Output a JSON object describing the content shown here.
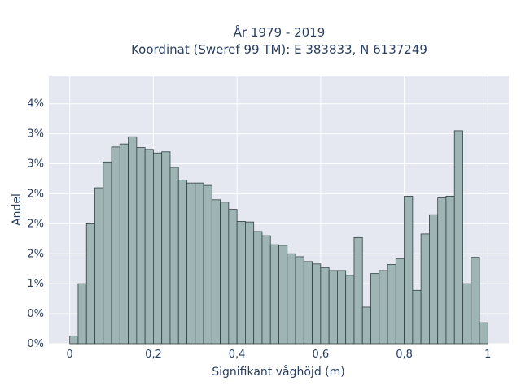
{
  "chart_data": {
    "type": "bar",
    "title_line1": "År 1979 - 2019",
    "title_line2": "Koordinat (Sweref 99 TM): E 383833, N 6137249",
    "xlabel": "Signifikant våghöjd (m)",
    "ylabel": "Andel",
    "xlim": [
      -0.05,
      1.05
    ],
    "ylim": [
      0,
      0.0447
    ],
    "x_ticks": [
      {
        "value": 0,
        "label": "0"
      },
      {
        "value": 0.2,
        "label": "0,2"
      },
      {
        "value": 0.4,
        "label": "0,4"
      },
      {
        "value": 0.6,
        "label": "0,6"
      },
      {
        "value": 0.8,
        "label": "0,8"
      },
      {
        "value": 1.0,
        "label": "1"
      }
    ],
    "y_ticks": [
      {
        "value": 0,
        "label": "0%"
      },
      {
        "value": 0.005,
        "label": "0%"
      },
      {
        "value": 0.01,
        "label": "1%"
      },
      {
        "value": 0.015,
        "label": "2%"
      },
      {
        "value": 0.02,
        "label": "2%"
      },
      {
        "value": 0.025,
        "label": "2%"
      },
      {
        "value": 0.03,
        "label": "3%"
      },
      {
        "value": 0.035,
        "label": "3%"
      },
      {
        "value": 0.04,
        "label": "4%"
      }
    ],
    "bin_start": 0.0,
    "bin_width": 0.02,
    "values": [
      0.0013,
      0.01,
      0.02,
      0.026,
      0.0303,
      0.0328,
      0.0333,
      0.0345,
      0.0327,
      0.0324,
      0.0318,
      0.032,
      0.0294,
      0.0273,
      0.0268,
      0.0268,
      0.0264,
      0.024,
      0.0236,
      0.0224,
      0.0204,
      0.0203,
      0.0187,
      0.018,
      0.0165,
      0.0164,
      0.015,
      0.0145,
      0.0137,
      0.0133,
      0.0127,
      0.0122,
      0.0122,
      0.0114,
      0.0177,
      0.0061,
      0.0117,
      0.0122,
      0.0132,
      0.0142,
      0.0246,
      0.0089,
      0.0183,
      0.0215,
      0.0243,
      0.0246,
      0.0355,
      0.01,
      0.0144,
      0.0035
    ],
    "grid": true,
    "colors": {
      "bar_fill": "#9fb5b5",
      "bar_stroke": "#2f3f3f",
      "plot_background": "#e5e8f0",
      "grid": "#ffffff",
      "text": "#2a3f5f"
    }
  }
}
